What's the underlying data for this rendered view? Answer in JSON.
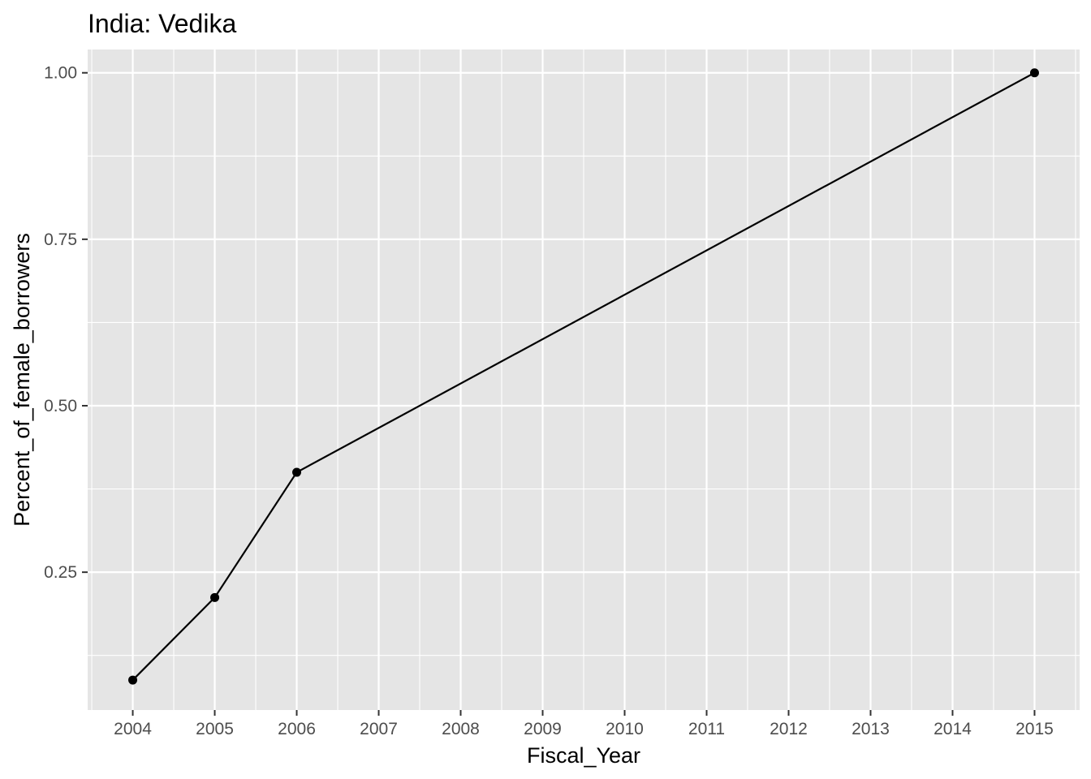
{
  "chart_data": {
    "type": "line",
    "title": "India:  Vedika",
    "xlabel": "Fiscal_Year",
    "ylabel": "Percent_of_female_borrowers",
    "x_ticks": [
      "2004",
      "2005",
      "2006",
      "2007",
      "2008",
      "2009",
      "2010",
      "2011",
      "2012",
      "2013",
      "2014",
      "2015"
    ],
    "y_ticks": [
      "0.25",
      "0.50",
      "0.75",
      "1.00"
    ],
    "xlim": [
      2003.45,
      2015.55
    ],
    "ylim": [
      0.043,
      1.035
    ],
    "grid": true,
    "points_shown": true,
    "colors": {
      "panel_background": "#e5e5e5",
      "grid_major": "#ffffff",
      "line": "#000000",
      "tick_text": "#4d4d4d"
    },
    "series": [
      {
        "x": [
          2004,
          2005,
          2006,
          2015
        ],
        "y": [
          0.088,
          0.212,
          0.4,
          1.0
        ]
      }
    ]
  }
}
